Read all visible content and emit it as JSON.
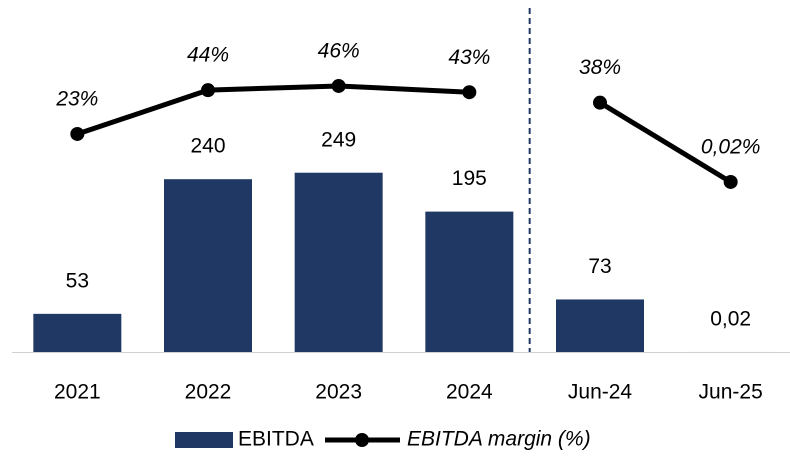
{
  "chart_data": {
    "type": "bar",
    "categories": [
      "2021",
      "2022",
      "2023",
      "2024",
      "Jun-24",
      "Jun-25"
    ],
    "series": [
      {
        "name": "EBITDA",
        "type": "bar",
        "color": "#203864",
        "values": [
          53,
          240,
          249,
          195,
          73,
          0.02
        ],
        "value_labels": [
          "53",
          "240",
          "249",
          "195",
          "73",
          "0,02"
        ]
      },
      {
        "name": "EBITDA margin (%)",
        "type": "line",
        "axis": "y2",
        "color": "#000000",
        "values": [
          23,
          44,
          46,
          43,
          38,
          0.02
        ],
        "value_labels": [
          "23%",
          "44%",
          "46%",
          "43%",
          "38%",
          "0,02%"
        ]
      }
    ],
    "ylim": [
      0,
      300
    ],
    "y2lim": [
      0,
      80
    ],
    "divider_before": "Jun-24",
    "legend": "bottom"
  }
}
